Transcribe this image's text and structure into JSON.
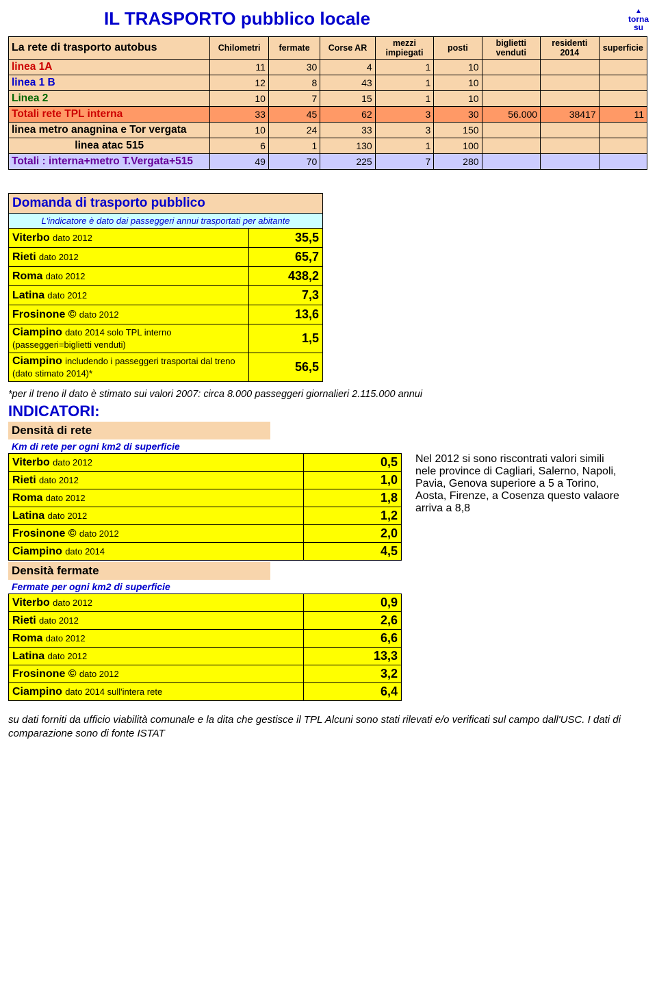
{
  "title": "IL  TRASPORTO pubblico locale",
  "torna": {
    "tri": "▲",
    "l1": "torna",
    "l2": "su"
  },
  "table1": {
    "headers": [
      "La rete di trasporto autobus",
      "Chilometri",
      "fermate",
      "Corse AR",
      "mezzi impiegati",
      "posti",
      "biglietti venduti",
      "residenti 2014",
      "superficie"
    ],
    "rows": [
      {
        "label": "linea 1A",
        "cls": "red",
        "bg": "bg-tan",
        "v": [
          "11",
          "30",
          "4",
          "1",
          "10",
          "",
          "",
          ""
        ]
      },
      {
        "label": "linea 1 B",
        "cls": "blue",
        "bg": "bg-tan",
        "v": [
          "12",
          "8",
          "43",
          "1",
          "10",
          "",
          "",
          ""
        ]
      },
      {
        "label": "Linea 2",
        "cls": "green",
        "bg": "bg-tan",
        "v": [
          "10",
          "7",
          "15",
          "1",
          "10",
          "",
          "",
          ""
        ]
      },
      {
        "label": "Totali rete TPL interna",
        "cls": "red",
        "bg": "bg-orange",
        "v": [
          "33",
          "45",
          "62",
          "3",
          "30",
          "56.000",
          "38417",
          "11"
        ]
      },
      {
        "label": "linea metro anagnina e Tor vergata",
        "cls": "",
        "bg": "bg-tan",
        "v": [
          "10",
          "24",
          "33",
          "3",
          "150",
          "",
          "",
          ""
        ]
      },
      {
        "label": "linea atac 515",
        "cls": "",
        "bg": "bg-tan",
        "v": [
          "6",
          "1",
          "130",
          "1",
          "100",
          "",
          "",
          ""
        ],
        "center": true
      },
      {
        "label": "Totali : interna+metro T.Vergata+515",
        "cls": "purple",
        "bg": "bg-lav",
        "v": [
          "49",
          "70",
          "225",
          "7",
          "280",
          "",
          "",
          ""
        ]
      }
    ]
  },
  "domanda": {
    "title": "Domanda di trasporto pubblico",
    "sub": "L'indicatore è dato dai passeggeri annui trasportati per abitante",
    "rows": [
      {
        "b": "Viterbo",
        "s": "dato 2012",
        "v": "35,5"
      },
      {
        "b": "Rieti",
        "s": "dato 2012",
        "v": "65,7"
      },
      {
        "b": "Roma",
        "s": "dato 2012",
        "v": "438,2"
      },
      {
        "b": "Latina",
        "s": "dato 2012",
        "v": "7,3"
      },
      {
        "b": "Frosinone ©",
        "s": "dato 2012",
        "v": "13,6"
      },
      {
        "b": "Ciampino",
        "s": "dato 2014 solo TPL interno (passeggeri=biglietti venduti)",
        "v": "1,5",
        "wrap": true
      },
      {
        "b": "Ciampino",
        "s": "includendo i passeggeri trasportai dal treno (dato stimato 2014)*",
        "v": "56,5",
        "wrap": true
      }
    ]
  },
  "footnote": "*per il treno il dato è stimato sui valori 2007: circa 8.000 passeggeri giornalieri 2.115.000 annui",
  "indicatori_title": "INDICATORI:",
  "densita_rete": {
    "title": "Densità di rete",
    "sub": "Km di rete per ogni km2 di superficie",
    "rows": [
      {
        "b": "Viterbo",
        "s": "dato 2012",
        "v": "0,5"
      },
      {
        "b": "Rieti",
        "s": "dato 2012",
        "v": "1,0"
      },
      {
        "b": "Roma",
        "s": "dato 2012",
        "v": "1,8"
      },
      {
        "b": "Latina",
        "s": "dato 2012",
        "v": "1,2"
      },
      {
        "b": "Frosinone ©",
        "s": "dato 2012",
        "v": "2,0"
      },
      {
        "b": "Ciampino",
        "s": "dato 2014",
        "v": "4,5"
      }
    ]
  },
  "side_note": "Nel 2012 si sono riscontrati valori simili nele province di Cagliari, Salerno, Napoli, Pavia, Genova superiore a 5 a Torino, Aosta, Firenze, a Cosenza questo valaore arriva a 8,8",
  "densita_fermate": {
    "title": "Densità fermate",
    "sub": "Fermate per ogni km2 di superficie",
    "rows": [
      {
        "b": "Viterbo",
        "s": "dato 2012",
        "v": "0,9"
      },
      {
        "b": "Rieti",
        "s": "dato 2012",
        "v": "2,6"
      },
      {
        "b": "Roma",
        "s": "dato 2012",
        "v": "6,6"
      },
      {
        "b": "Latina",
        "s": "dato 2012",
        "v": "13,3"
      },
      {
        "b": "Frosinone ©",
        "s": "dato 2012",
        "v": "3,2"
      },
      {
        "b": "Ciampino",
        "s": "dato 2014 sull'intera rete",
        "v": "6,4"
      }
    ]
  },
  "bottom": "su dati forniti da ufficio viabilità comunale e la dita che gestisce il TPL Alcuni sono stati rilevati e/o verificati sul campo dall'USC. I dati di comparazione sono di fonte ISTAT"
}
